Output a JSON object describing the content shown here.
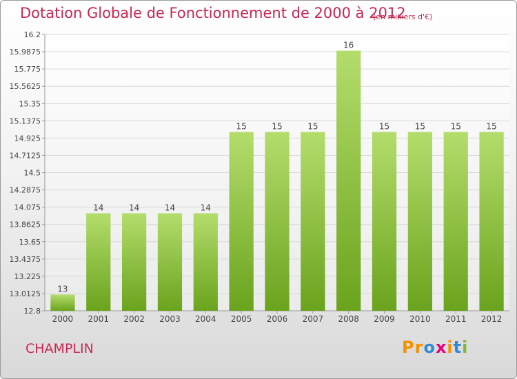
{
  "header": {
    "title": "Dotation Globale de Fonctionnement de 2000 à 2012",
    "unit": "(en milliers d'€)"
  },
  "footer": {
    "commune": "CHAMPLIN",
    "logo": {
      "text": "Proxiti",
      "letters": [
        "P",
        "r",
        "o",
        "x",
        "i",
        "t",
        "i"
      ],
      "colors": [
        "#f39200",
        "#f39200",
        "#2e8bd6",
        "#e6007e",
        "#f39200",
        "#2e8bd6",
        "#7cb82f"
      ]
    }
  },
  "colors": {
    "bar_light": "#b4dd6c",
    "bar_dark": "#6aa31d",
    "title": "#c8284f",
    "grid": "#d8d8d8"
  },
  "chart_data": {
    "type": "bar",
    "categories": [
      "2000",
      "2001",
      "2002",
      "2003",
      "2004",
      "2005",
      "2006",
      "2007",
      "2008",
      "2009",
      "2010",
      "2011",
      "2012"
    ],
    "values": [
      13,
      14,
      14,
      14,
      14,
      15,
      15,
      15,
      16,
      15,
      15,
      15,
      15
    ],
    "value_labels": [
      "13",
      "14",
      "14",
      "14",
      "14",
      "15",
      "15",
      "15",
      "16",
      "15",
      "15",
      "15",
      "15"
    ],
    "plotted_values": [
      13.0,
      14.0,
      14.0,
      14.0,
      14.0,
      15.0,
      15.0,
      15.0,
      16.0,
      15.0,
      15.0,
      15.0,
      15.0
    ],
    "yticks": [
      "12.8",
      "13.0125",
      "13.225",
      "13.4375",
      "13.65",
      "13.8625",
      "14.075",
      "14.2875",
      "14.5",
      "14.7125",
      "14.925",
      "15.1375",
      "15.35",
      "15.5625",
      "15.775",
      "15.9875",
      "16.2"
    ],
    "ylim": [
      12.8,
      16.2
    ],
    "grid": true,
    "legend": "none",
    "title": "Dotation Globale de Fonctionnement de 2000 à 2012",
    "xlabel": "",
    "ylabel": ""
  }
}
